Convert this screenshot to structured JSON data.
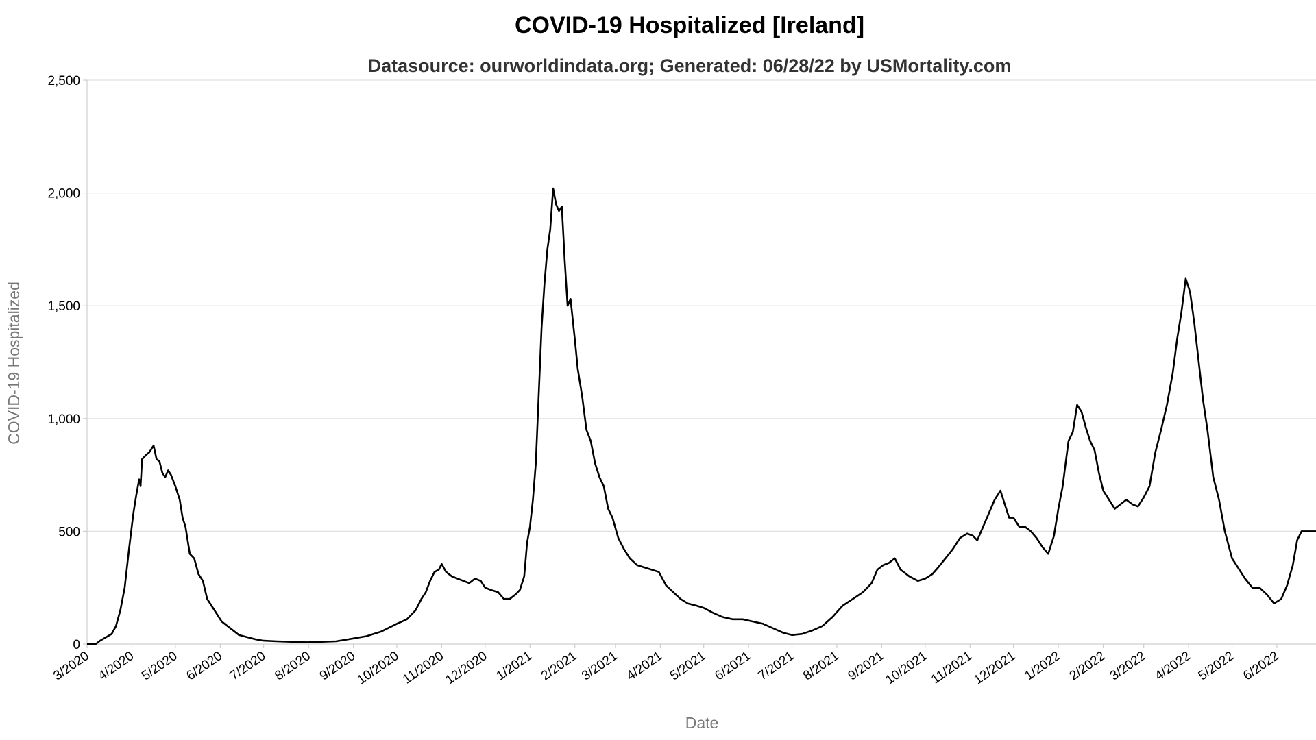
{
  "chart_data": {
    "type": "line",
    "title": "COVID-19 Hospitalized [Ireland]",
    "subtitle": "Datasource: ourworldindata.org; Generated: 06/28/22 by USMortality.com",
    "xlabel": "Date",
    "ylabel": "COVID-19 Hospitalized",
    "ylim": [
      0,
      2500
    ],
    "yticks": [
      0,
      500,
      1000,
      1500,
      2000,
      2500
    ],
    "ytick_labels": [
      "0",
      "500",
      "1,000",
      "1,500",
      "2,000",
      "2,500"
    ],
    "xlim": [
      "2020-03-01",
      "2022-06-28"
    ],
    "xtick_dates": [
      "2020-03-01",
      "2020-04-01",
      "2020-05-01",
      "2020-06-01",
      "2020-07-01",
      "2020-08-01",
      "2020-09-01",
      "2020-10-01",
      "2020-11-01",
      "2020-12-01",
      "2021-01-01",
      "2021-02-01",
      "2021-03-01",
      "2021-04-01",
      "2021-05-01",
      "2021-06-01",
      "2021-07-01",
      "2021-08-01",
      "2021-09-01",
      "2021-10-01",
      "2021-11-01",
      "2021-12-01",
      "2022-01-01",
      "2022-02-01",
      "2022-03-01",
      "2022-04-01",
      "2022-05-01",
      "2022-06-01"
    ],
    "xtick_labels": [
      "3/2020",
      "4/2020",
      "5/2020",
      "6/2020",
      "7/2020",
      "8/2020",
      "9/2020",
      "10/2020",
      "11/2020",
      "12/2020",
      "1/2021",
      "2/2021",
      "3/2021",
      "4/2021",
      "5/2021",
      "6/2021",
      "7/2021",
      "8/2021",
      "9/2021",
      "10/2021",
      "11/2021",
      "12/2021",
      "1/2022",
      "2/2022",
      "3/2022",
      "4/2022",
      "5/2022",
      "6/2022"
    ],
    "grid": true,
    "series": [
      {
        "color": "#000000",
        "points": [
          [
            "2020-03-01",
            0
          ],
          [
            "2020-03-07",
            0
          ],
          [
            "2020-03-10",
            15
          ],
          [
            "2020-03-14",
            30
          ],
          [
            "2020-03-18",
            45
          ],
          [
            "2020-03-21",
            80
          ],
          [
            "2020-03-24",
            150
          ],
          [
            "2020-03-27",
            250
          ],
          [
            "2020-03-30",
            420
          ],
          [
            "2020-04-02",
            580
          ],
          [
            "2020-04-04",
            660
          ],
          [
            "2020-04-06",
            730
          ],
          [
            "2020-04-07",
            700
          ],
          [
            "2020-04-08",
            820
          ],
          [
            "2020-04-11",
            840
          ],
          [
            "2020-04-13",
            850
          ],
          [
            "2020-04-15",
            870
          ],
          [
            "2020-04-16",
            880
          ],
          [
            "2020-04-18",
            820
          ],
          [
            "2020-04-20",
            810
          ],
          [
            "2020-04-22",
            760
          ],
          [
            "2020-04-24",
            740
          ],
          [
            "2020-04-26",
            770
          ],
          [
            "2020-04-28",
            750
          ],
          [
            "2020-05-01",
            700
          ],
          [
            "2020-05-04",
            640
          ],
          [
            "2020-05-06",
            560
          ],
          [
            "2020-05-08",
            520
          ],
          [
            "2020-05-11",
            400
          ],
          [
            "2020-05-14",
            380
          ],
          [
            "2020-05-17",
            310
          ],
          [
            "2020-05-20",
            280
          ],
          [
            "2020-05-23",
            200
          ],
          [
            "2020-05-26",
            170
          ],
          [
            "2020-05-29",
            140
          ],
          [
            "2020-06-02",
            100
          ],
          [
            "2020-06-06",
            80
          ],
          [
            "2020-06-10",
            60
          ],
          [
            "2020-06-14",
            40
          ],
          [
            "2020-06-20",
            30
          ],
          [
            "2020-06-26",
            20
          ],
          [
            "2020-07-01",
            15
          ],
          [
            "2020-07-10",
            12
          ],
          [
            "2020-07-20",
            10
          ],
          [
            "2020-07-31",
            8
          ],
          [
            "2020-08-10",
            10
          ],
          [
            "2020-08-20",
            12
          ],
          [
            "2020-09-01",
            25
          ],
          [
            "2020-09-10",
            35
          ],
          [
            "2020-09-20",
            55
          ],
          [
            "2020-10-01",
            90
          ],
          [
            "2020-10-08",
            110
          ],
          [
            "2020-10-14",
            150
          ],
          [
            "2020-10-18",
            200
          ],
          [
            "2020-10-21",
            230
          ],
          [
            "2020-10-24",
            280
          ],
          [
            "2020-10-27",
            320
          ],
          [
            "2020-10-30",
            330
          ],
          [
            "2020-11-01",
            355
          ],
          [
            "2020-11-04",
            320
          ],
          [
            "2020-11-08",
            300
          ],
          [
            "2020-11-12",
            290
          ],
          [
            "2020-11-16",
            280
          ],
          [
            "2020-11-20",
            270
          ],
          [
            "2020-11-24",
            290
          ],
          [
            "2020-11-28",
            280
          ],
          [
            "2020-12-01",
            250
          ],
          [
            "2020-12-05",
            240
          ],
          [
            "2020-12-10",
            230
          ],
          [
            "2020-12-14",
            200
          ],
          [
            "2020-12-18",
            200
          ],
          [
            "2020-12-22",
            220
          ],
          [
            "2020-12-25",
            240
          ],
          [
            "2020-12-28",
            300
          ],
          [
            "2020-12-30",
            450
          ],
          [
            "2021-01-01",
            520
          ],
          [
            "2021-01-03",
            640
          ],
          [
            "2021-01-05",
            800
          ],
          [
            "2021-01-07",
            1100
          ],
          [
            "2021-01-09",
            1400
          ],
          [
            "2021-01-11",
            1600
          ],
          [
            "2021-01-13",
            1750
          ],
          [
            "2021-01-15",
            1840
          ],
          [
            "2021-01-17",
            2020
          ],
          [
            "2021-01-19",
            1950
          ],
          [
            "2021-01-21",
            1920
          ],
          [
            "2021-01-23",
            1940
          ],
          [
            "2021-01-25",
            1700
          ],
          [
            "2021-01-27",
            1500
          ],
          [
            "2021-01-29",
            1530
          ],
          [
            "2021-02-01",
            1350
          ],
          [
            "2021-02-03",
            1220
          ],
          [
            "2021-02-06",
            1100
          ],
          [
            "2021-02-09",
            950
          ],
          [
            "2021-02-12",
            900
          ],
          [
            "2021-02-15",
            800
          ],
          [
            "2021-02-18",
            740
          ],
          [
            "2021-02-21",
            700
          ],
          [
            "2021-02-24",
            600
          ],
          [
            "2021-02-27",
            560
          ],
          [
            "2021-03-03",
            470
          ],
          [
            "2021-03-07",
            420
          ],
          [
            "2021-03-11",
            380
          ],
          [
            "2021-03-16",
            350
          ],
          [
            "2021-03-21",
            340
          ],
          [
            "2021-03-26",
            330
          ],
          [
            "2021-03-31",
            320
          ],
          [
            "2021-04-05",
            260
          ],
          [
            "2021-04-10",
            230
          ],
          [
            "2021-04-15",
            200
          ],
          [
            "2021-04-20",
            180
          ],
          [
            "2021-04-26",
            170
          ],
          [
            "2021-05-01",
            160
          ],
          [
            "2021-05-07",
            140
          ],
          [
            "2021-05-14",
            120
          ],
          [
            "2021-05-21",
            110
          ],
          [
            "2021-05-28",
            110
          ],
          [
            "2021-06-04",
            100
          ],
          [
            "2021-06-11",
            90
          ],
          [
            "2021-06-18",
            70
          ],
          [
            "2021-06-25",
            50
          ],
          [
            "2021-07-01",
            40
          ],
          [
            "2021-07-08",
            45
          ],
          [
            "2021-07-15",
            60
          ],
          [
            "2021-07-22",
            80
          ],
          [
            "2021-07-29",
            120
          ],
          [
            "2021-08-05",
            170
          ],
          [
            "2021-08-12",
            200
          ],
          [
            "2021-08-19",
            230
          ],
          [
            "2021-08-25",
            270
          ],
          [
            "2021-08-29",
            330
          ],
          [
            "2021-09-02",
            350
          ],
          [
            "2021-09-06",
            360
          ],
          [
            "2021-09-10",
            380
          ],
          [
            "2021-09-14",
            330
          ],
          [
            "2021-09-20",
            300
          ],
          [
            "2021-09-26",
            280
          ],
          [
            "2021-10-01",
            290
          ],
          [
            "2021-10-06",
            310
          ],
          [
            "2021-10-10",
            340
          ],
          [
            "2021-10-15",
            380
          ],
          [
            "2021-10-20",
            420
          ],
          [
            "2021-10-25",
            470
          ],
          [
            "2021-10-30",
            490
          ],
          [
            "2021-11-03",
            480
          ],
          [
            "2021-11-06",
            460
          ],
          [
            "2021-11-10",
            520
          ],
          [
            "2021-11-14",
            580
          ],
          [
            "2021-11-18",
            640
          ],
          [
            "2021-11-22",
            680
          ],
          [
            "2021-11-25",
            620
          ],
          [
            "2021-11-28",
            560
          ],
          [
            "2021-12-01",
            560
          ],
          [
            "2021-12-05",
            520
          ],
          [
            "2021-12-09",
            520
          ],
          [
            "2021-12-13",
            500
          ],
          [
            "2021-12-17",
            470
          ],
          [
            "2021-12-21",
            430
          ],
          [
            "2021-12-25",
            400
          ],
          [
            "2021-12-29",
            480
          ],
          [
            "2022-01-01",
            600
          ],
          [
            "2022-01-04",
            700
          ],
          [
            "2022-01-08",
            900
          ],
          [
            "2022-01-11",
            940
          ],
          [
            "2022-01-14",
            1060
          ],
          [
            "2022-01-17",
            1030
          ],
          [
            "2022-01-20",
            960
          ],
          [
            "2022-01-23",
            900
          ],
          [
            "2022-01-26",
            860
          ],
          [
            "2022-01-29",
            760
          ],
          [
            "2022-02-01",
            680
          ],
          [
            "2022-02-05",
            640
          ],
          [
            "2022-02-09",
            600
          ],
          [
            "2022-02-13",
            620
          ],
          [
            "2022-02-17",
            640
          ],
          [
            "2022-02-21",
            620
          ],
          [
            "2022-02-25",
            610
          ],
          [
            "2022-03-01",
            650
          ],
          [
            "2022-03-05",
            700
          ],
          [
            "2022-03-09",
            850
          ],
          [
            "2022-03-13",
            950
          ],
          [
            "2022-03-17",
            1060
          ],
          [
            "2022-03-21",
            1200
          ],
          [
            "2022-03-24",
            1350
          ],
          [
            "2022-03-27",
            1470
          ],
          [
            "2022-03-30",
            1620
          ],
          [
            "2022-04-02",
            1560
          ],
          [
            "2022-04-05",
            1420
          ],
          [
            "2022-04-08",
            1250
          ],
          [
            "2022-04-11",
            1080
          ],
          [
            "2022-04-14",
            950
          ],
          [
            "2022-04-18",
            740
          ],
          [
            "2022-04-22",
            640
          ],
          [
            "2022-04-26",
            500
          ],
          [
            "2022-05-01",
            380
          ],
          [
            "2022-05-05",
            340
          ],
          [
            "2022-05-10",
            290
          ],
          [
            "2022-05-15",
            250
          ],
          [
            "2022-05-20",
            250
          ],
          [
            "2022-05-25",
            220
          ],
          [
            "2022-05-30",
            180
          ],
          [
            "2022-06-04",
            200
          ],
          [
            "2022-06-08",
            260
          ],
          [
            "2022-06-12",
            350
          ],
          [
            "2022-06-15",
            460
          ],
          [
            "2022-06-18",
            500
          ],
          [
            "2022-06-21",
            500
          ],
          [
            "2022-06-28",
            500
          ]
        ]
      }
    ]
  }
}
